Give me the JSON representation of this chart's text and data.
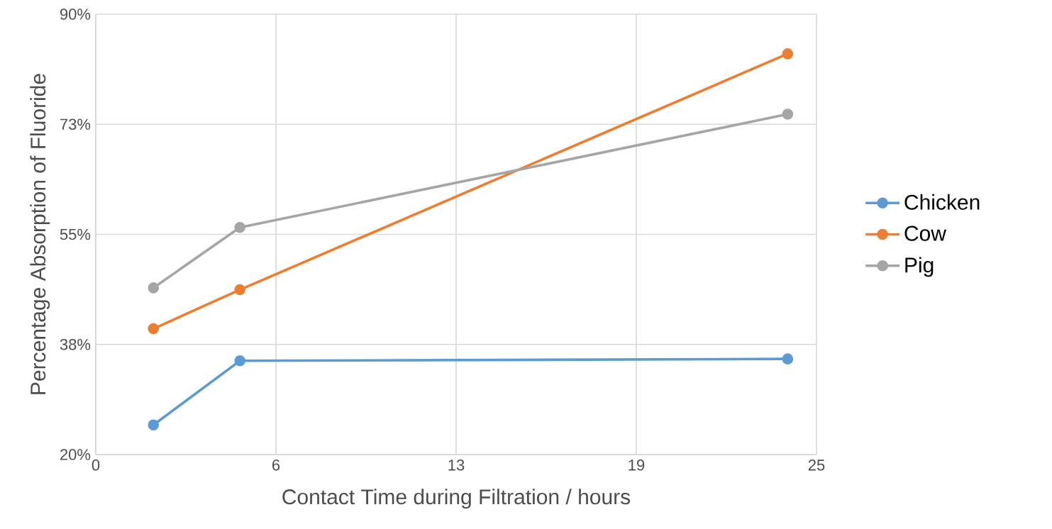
{
  "chart_data": {
    "type": "line",
    "xlabel": "Contact Time during Filtration / hours",
    "ylabel": "Percentage Absorption of Fluoride",
    "x": [
      2,
      5,
      24
    ],
    "series": [
      {
        "name": "Chicken",
        "color": "#5b9bd5",
        "values": [
          24.7,
          34.9,
          35.2
        ]
      },
      {
        "name": "Cow",
        "color": "#ed7d31",
        "values": [
          40,
          46.2,
          83.7
        ]
      },
      {
        "name": "Pig",
        "color": "#a5a5a5",
        "values": [
          46.5,
          56.1,
          74.1
        ]
      }
    ],
    "xlim": [
      0,
      25
    ],
    "ylim": [
      20,
      90
    ],
    "xticks": [
      0,
      {
        "value": 6.25,
        "label": "6"
      },
      {
        "value": 12.5,
        "label": "13"
      },
      {
        "value": 18.75,
        "label": "19"
      },
      25
    ],
    "yticks": [
      {
        "value": 20,
        "label": "20%"
      },
      {
        "value": 37.5,
        "label": "38%"
      },
      {
        "value": 55,
        "label": "55%"
      },
      {
        "value": 72.5,
        "label": "73%"
      },
      {
        "value": 90,
        "label": "90%"
      }
    ],
    "grid": true,
    "legend": "right",
    "marker": "circle"
  }
}
